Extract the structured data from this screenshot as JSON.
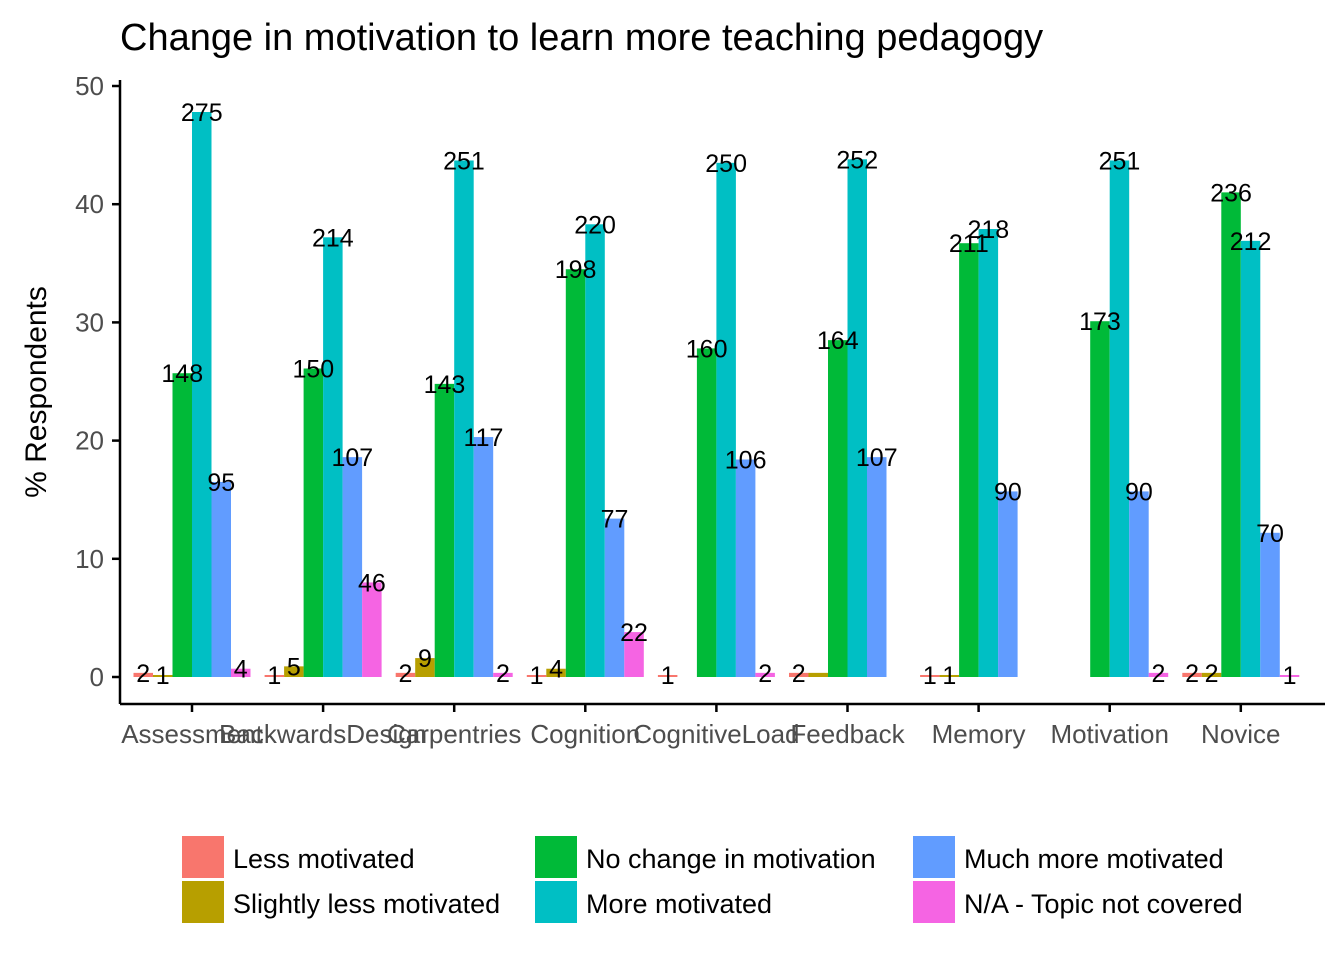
{
  "chart_data": {
    "type": "bar",
    "title": "Change in motivation to learn more teaching pedagogy",
    "xlabel": "",
    "ylabel": "% Respondents",
    "ylim": [
      0,
      50
    ],
    "yticks": [
      0,
      10,
      20,
      30,
      40,
      50
    ],
    "grid": false,
    "legend_position": "bottom",
    "categories": [
      "Assessment",
      "BackwardsDesign",
      "Carpentries",
      "Cognition",
      "CognitiveLoad",
      "Feedback",
      "Memory",
      "Motivation",
      "Novice"
    ],
    "series": [
      {
        "name": "Less motivated",
        "color": "#F8766D",
        "values": [
          0.35,
          0.17,
          0.35,
          0.17,
          0.17,
          0.35,
          0.17,
          0.0,
          0.35
        ],
        "labels": [
          "2",
          "1",
          "2",
          "1",
          "1",
          "2",
          "1",
          "",
          "2"
        ]
      },
      {
        "name": "Slightly less motivated",
        "color": "#B79F00",
        "values": [
          0.17,
          0.9,
          1.6,
          0.7,
          0.0,
          0.35,
          0.17,
          0.0,
          0.35
        ],
        "labels": [
          "1",
          "5",
          "9",
          "4",
          "",
          "",
          "1",
          "",
          "2"
        ]
      },
      {
        "name": "No change in motivation",
        "color": "#00BA38",
        "values": [
          25.7,
          26.1,
          24.8,
          34.5,
          27.8,
          28.5,
          36.7,
          30.1,
          41.0
        ],
        "labels": [
          "148",
          "150",
          "143",
          "198",
          "160",
          "164",
          "211",
          "173",
          "236"
        ]
      },
      {
        "name": "More motivated",
        "color": "#00BFC4",
        "values": [
          47.8,
          37.2,
          43.7,
          38.3,
          43.5,
          43.8,
          37.9,
          43.7,
          36.9
        ],
        "labels": [
          "275",
          "214",
          "251",
          "220",
          "250",
          "252",
          "218",
          "251",
          "212"
        ]
      },
      {
        "name": "Much more motivated",
        "color": "#619CFF",
        "values": [
          16.5,
          18.6,
          20.3,
          13.4,
          18.4,
          18.6,
          15.7,
          15.7,
          12.2
        ],
        "labels": [
          "95",
          "107",
          "117",
          "77",
          "106",
          "107",
          "90",
          "90",
          "70"
        ]
      },
      {
        "name": "N/A - Topic not covered",
        "color": "#F564E3",
        "values": [
          0.7,
          8.0,
          0.35,
          3.8,
          0.35,
          0.0,
          0.0,
          0.35,
          0.17
        ],
        "labels": [
          "4",
          "46",
          "2",
          "22",
          "2",
          "",
          "",
          "2",
          "1"
        ]
      }
    ]
  }
}
